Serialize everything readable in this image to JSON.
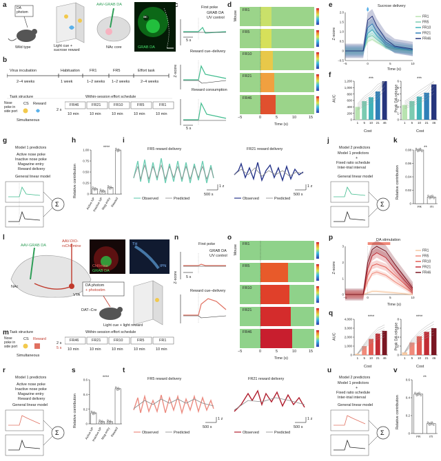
{
  "labels": {
    "a": "a",
    "b": "b",
    "c": "c",
    "d": "d",
    "e": "e",
    "f": "f",
    "g": "g",
    "h": "h",
    "i": "i",
    "j": "j",
    "k": "k",
    "l": "l",
    "m": "m",
    "n": "n",
    "o": "o",
    "p": "p",
    "q": "q",
    "r": "r",
    "s": "s",
    "t": "t",
    "u": "u",
    "v": "v"
  },
  "a": {
    "da_photom": "DA\nphotom",
    "wild_type": "Wild type",
    "light_cue": "Light cue +\nsucrose reward",
    "aav": "AAV-GRAB DA",
    "nac_core": "NAc core",
    "grab_da": "GRAB DA",
    "ac": "ac"
  },
  "b": {
    "timeline": [
      "Virus incubation",
      "Habituation",
      "FR1",
      "FR5",
      "Effort task"
    ],
    "durations": [
      "2–4 weeks",
      "1 week",
      "1–2 weeks",
      "1–2 weeks",
      "2–4 weeks"
    ],
    "task_structure": "Task structure",
    "within": "Within-session effort schedule",
    "nose_poke": "Nose\npoke in\nside port",
    "cs": "CS",
    "reward": "Reward",
    "simultaneous": "Simultaneous",
    "gap": "2 s",
    "schedule": [
      "FR46",
      "FR21",
      "FR10",
      "FR5",
      "FR1"
    ],
    "min": "10 min"
  },
  "c": {
    "titles": [
      "First poke",
      "Reward cue–delivery",
      "Reward consumption"
    ],
    "legend": [
      "GRAB DA",
      "UV control"
    ],
    "ylabel": "Z-score",
    "scale": "5 s"
  },
  "d": {
    "rows": [
      "FR1",
      "FR5",
      "FR10",
      "FR21",
      "FR46"
    ],
    "ylabel": "Mouse",
    "xlabel": "Time (s)",
    "ticks": [
      "−5",
      "0",
      "5",
      "10",
      "15"
    ]
  },
  "e": {
    "title": "Sucrose delivery",
    "ylabel": "Z-score",
    "xlabel": "Time (s)",
    "xticks": [
      "−5",
      "0",
      "5",
      "10"
    ],
    "yticks": [
      "2.0",
      "1.5",
      "1.0",
      "0.5",
      "0",
      "−0.5"
    ],
    "legend": [
      "FR1",
      "FR5",
      "FR10",
      "FR21",
      "FR46"
    ]
  },
  "f": {
    "ylabel1": "AUC",
    "ylabel2": "Peak DA release",
    "xlabel": "Cost",
    "cats": [
      "1",
      "5",
      "10",
      "21",
      "46"
    ],
    "yticks1": [
      "1,200",
      "1,000",
      "800",
      "600",
      "400",
      "200",
      "0"
    ],
    "yticks2": [
      "6",
      "5",
      "4",
      "3",
      "2",
      "1",
      "0"
    ],
    "sig": "***"
  },
  "g": {
    "title": "Model 1 predictors",
    "items": [
      "Active nose poke",
      "Inactive nose poke",
      "Magazine entry",
      "Reward delivery"
    ],
    "glm": "General linear model"
  },
  "h": {
    "ylabel": "Relative contribution",
    "cats": [
      "Active NP",
      "Inactive NP",
      "Mag entry",
      "Reward"
    ],
    "yticks": [
      "1.00",
      "0.75",
      "0.50",
      "0.25",
      "0"
    ],
    "sig": "****"
  },
  "i": {
    "t1": "FR5 reward delivery",
    "t2": "FR21 reward delivery",
    "obs": "Observed",
    "pred": "Predicted",
    "scale": "500 s",
    "z": "1 z"
  },
  "j": {
    "title": "Model 2 predictors",
    "items": [
      "Model 1 predictors",
      "+",
      "Fixed ratio schedule",
      "Inter-trial interval"
    ],
    "glm": "General linear model"
  },
  "k": {
    "ylabel": "Relative contribution",
    "cats": [
      "FR",
      "ITI"
    ],
    "yticks": [
      "0.08",
      "0.06",
      "0.04",
      "0.02",
      "0"
    ],
    "sig": "**"
  },
  "l": {
    "aav1": "AAV-GRAB DA",
    "aav2": "AAV-DIO-",
    "rschr": "rsChRmine",
    "nac": "NAc",
    "vta": "VTA",
    "chr": "ChRmine",
    "grab": "GRAB DA",
    "th": "TH",
    "ipn": "IPN",
    "photom": "DA photom",
    "photostim": "+ photostim",
    "dat": "DAT–Cre",
    "cue": "Light cue + light reward"
  },
  "m": {
    "task_structure": "Task structure",
    "within": "Within-session effort schedule",
    "nose_poke": "Nose\npoke in\nside port",
    "cs": "CS",
    "reward": "Reward",
    "simultaneous": "Simultaneous",
    "gap1": "2 s",
    "gap2": "5 s",
    "schedule": [
      "FR46",
      "FR21",
      "FR10",
      "FR5",
      "FR1"
    ],
    "min": "10 min"
  },
  "n": {
    "titles": [
      "First poke",
      "Reward cue–delivery"
    ],
    "legend": [
      "GRAB DA",
      "UV control"
    ],
    "ylabel": "Z-score",
    "scale": "5 s"
  },
  "o": {
    "rows": [
      "FR1",
      "FR5",
      "FR10",
      "FR21",
      "FR46"
    ],
    "ylabel": "Mouse",
    "xlabel": "Time (s)",
    "ticks": [
      "−5",
      "0",
      "5",
      "10",
      "15"
    ]
  },
  "p": {
    "title": "DA stimulation",
    "ylabel": "Z-score",
    "xlabel": "Time (s)",
    "xticks": [
      "−5",
      "0",
      "5",
      "10"
    ],
    "yticks": [
      "3",
      "2",
      "1",
      "0"
    ],
    "legend": [
      "FR1",
      "FR5",
      "FR10",
      "FR21",
      "FR46"
    ]
  },
  "q": {
    "ylabel1": "AUC",
    "ylabel2": "Peak DA release",
    "xlabel": "Cost",
    "cats": [
      "1",
      "5",
      "10",
      "21",
      "46"
    ],
    "yticks1": [
      "4,000",
      "3,000",
      "2,000",
      "1,000",
      "0"
    ],
    "yticks2": [
      "8",
      "6",
      "4",
      "2",
      "0"
    ],
    "sig": "****"
  },
  "r": {
    "title": "Model 1 predictors",
    "items": [
      "Active nose poke",
      "Inactive nose poke",
      "Magazine entry",
      "Reward delivery"
    ],
    "glm": "General linear model"
  },
  "s": {
    "ylabel": "Relative contribution",
    "cats": [
      "Active NP",
      "Inactive NP",
      "Mag entry",
      "Reward"
    ],
    "yticks": [
      "0.6",
      "0.4",
      "0.2",
      "0"
    ],
    "sig": "****"
  },
  "t": {
    "t1": "FR5 reward delivery",
    "t2": "FR21 reward delivery",
    "obs": "Observed",
    "pred": "Predicted",
    "scale": "500 s",
    "z": "1 z"
  },
  "u": {
    "title": "Model 2 predictors",
    "items": [
      "Model 1 predictors",
      "+",
      "Fixed ratio schedule",
      "Inter-trial interval"
    ],
    "glm": "General linear model"
  },
  "v": {
    "ylabel": "Relative contribution",
    "cats": [
      "FR",
      "ITI"
    ],
    "yticks": [
      "0.6",
      "0.4",
      "0.2",
      "0"
    ],
    "sig": "**"
  },
  "colors": {
    "grab": "#3dbb8c",
    "uv": "#222222",
    "teal": [
      "#b8e3b0",
      "#7bcbb1",
      "#3fb2b8",
      "#2f7fb8",
      "#26357c"
    ],
    "red": [
      "#f6c9a3",
      "#f08a7a",
      "#e25a52",
      "#c22b34",
      "#7a1622"
    ]
  },
  "chart_data": [
    {
      "type": "bar",
      "panel": "f-AUC",
      "categories": [
        "1",
        "5",
        "10",
        "21",
        "46"
      ],
      "values": [
        400,
        580,
        700,
        880,
        1250
      ],
      "ylim": [
        0,
        1200
      ],
      "ylabel": "AUC",
      "xlabel": "Cost"
    },
    {
      "type": "bar",
      "panel": "f-Peak",
      "categories": [
        "1",
        "5",
        "10",
        "21",
        "46"
      ],
      "values": [
        2.3,
        2.9,
        3.6,
        4.2,
        5.5
      ],
      "ylim": [
        0,
        6
      ],
      "ylabel": "Peak DA release",
      "xlabel": "Cost"
    },
    {
      "type": "bar",
      "panel": "h",
      "categories": [
        "Active NP",
        "Inactive NP",
        "Mag entry",
        "Reward"
      ],
      "values": [
        0.12,
        0.07,
        0.15,
        1.0
      ],
      "ylim": [
        0,
        1
      ],
      "ylabel": "Relative contribution"
    },
    {
      "type": "bar",
      "panel": "k",
      "categories": [
        "FR",
        "ITI"
      ],
      "values": [
        0.08,
        0.01
      ],
      "ylim": [
        0,
        0.08
      ],
      "ylabel": "Relative contribution"
    },
    {
      "type": "bar",
      "panel": "q-AUC",
      "categories": [
        "1",
        "5",
        "10",
        "21",
        "46"
      ],
      "values": [
        150,
        1000,
        1800,
        2400,
        2700
      ],
      "ylim": [
        0,
        4000
      ],
      "ylabel": "AUC",
      "xlabel": "Cost"
    },
    {
      "type": "bar",
      "panel": "q-Peak",
      "categories": [
        "1",
        "5",
        "10",
        "21",
        "46"
      ],
      "values": [
        0.6,
        2.8,
        4.2,
        5.2,
        6.0
      ],
      "ylim": [
        0,
        8
      ],
      "ylabel": "Peak DA release",
      "xlabel": "Cost"
    },
    {
      "type": "bar",
      "panel": "s",
      "categories": [
        "Active NP",
        "Inactive NP",
        "Mag entry",
        "Reward"
      ],
      "values": [
        0.15,
        0.03,
        0.03,
        0.48
      ],
      "ylim": [
        0,
        0.6
      ],
      "ylabel": "Relative contribution"
    },
    {
      "type": "bar",
      "panel": "v",
      "categories": [
        "FR",
        "ITI"
      ],
      "values": [
        0.44,
        0.11
      ],
      "ylim": [
        0,
        0.6
      ],
      "ylabel": "Relative contribution"
    },
    {
      "type": "line",
      "panel": "e",
      "x": [
        -5,
        -1,
        0,
        1,
        2,
        4,
        6,
        10
      ],
      "series": [
        {
          "name": "FR1",
          "values": [
            0,
            0,
            0.5,
            0.6,
            0.45,
            0.2,
            0.1,
            0
          ]
        },
        {
          "name": "FR5",
          "values": [
            0,
            0,
            0.7,
            0.8,
            0.6,
            0.25,
            0.1,
            0
          ]
        },
        {
          "name": "FR10",
          "values": [
            0,
            0,
            0.9,
            1.1,
            0.8,
            0.35,
            0.15,
            0.05
          ]
        },
        {
          "name": "FR21",
          "values": [
            0,
            0,
            1.2,
            1.4,
            1.0,
            0.45,
            0.2,
            0.05
          ]
        },
        {
          "name": "FR46",
          "values": [
            0,
            0,
            1.6,
            1.8,
            1.3,
            0.6,
            0.25,
            0.1
          ]
        }
      ],
      "xlabel": "Time (s)",
      "ylabel": "Z-score",
      "ylim": [
        -0.5,
        2.0
      ]
    },
    {
      "type": "line",
      "panel": "p",
      "x": [
        -5,
        -1,
        0,
        1,
        2,
        4,
        6,
        10
      ],
      "series": [
        {
          "name": "FR1",
          "values": [
            0,
            0,
            0.1,
            0.2,
            0.2,
            0.15,
            0.1,
            0
          ]
        },
        {
          "name": "FR5",
          "values": [
            0,
            0,
            0.8,
            1.3,
            1.4,
            1.2,
            0.8,
            0.1
          ]
        },
        {
          "name": "FR10",
          "values": [
            0,
            0,
            1.2,
            1.8,
            1.9,
            1.7,
            1.2,
            0.2
          ]
        },
        {
          "name": "FR21",
          "values": [
            0,
            0,
            1.6,
            2.4,
            2.6,
            2.3,
            1.6,
            0.3
          ]
        },
        {
          "name": "FR46",
          "values": [
            0,
            0,
            2.0,
            2.8,
            3.0,
            2.7,
            1.9,
            0.4
          ]
        }
      ],
      "xlabel": "Time (s)",
      "ylabel": "Z-score",
      "ylim": [
        0,
        3
      ]
    }
  ]
}
